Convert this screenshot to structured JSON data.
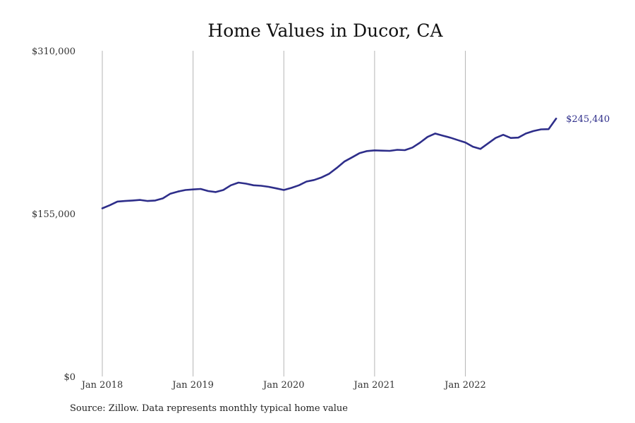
{
  "chart_data": {
    "type": "line",
    "title": "Home Values in Ducor, CA",
    "xlabel": "",
    "ylabel": "",
    "ylim": [
      0,
      310000
    ],
    "yticks": [
      0,
      155000,
      310000
    ],
    "ytick_labels": [
      "$0",
      "$155,000",
      "$310,000"
    ],
    "xtick_labels": [
      "Jan 2018",
      "Jan 2019",
      "Jan 2020",
      "Jan 2021",
      "Jan 2022"
    ],
    "grid": "vertical lines at January of each year",
    "legend": "none",
    "series": [
      {
        "color": "#2e2e8a",
        "x": [
          "2018-01",
          "2018-02",
          "2018-03",
          "2018-04",
          "2018-05",
          "2018-06",
          "2018-07",
          "2018-08",
          "2018-09",
          "2018-10",
          "2018-11",
          "2018-12",
          "2019-01",
          "2019-02",
          "2019-03",
          "2019-04",
          "2019-05",
          "2019-06",
          "2019-07",
          "2019-08",
          "2019-09",
          "2019-10",
          "2019-11",
          "2019-12",
          "2020-01",
          "2020-02",
          "2020-03",
          "2020-04",
          "2020-05",
          "2020-06",
          "2020-07",
          "2020-08",
          "2020-09",
          "2020-10",
          "2020-11",
          "2020-12",
          "2021-01",
          "2021-02",
          "2021-03",
          "2021-04",
          "2021-05",
          "2021-06",
          "2021-07",
          "2021-08",
          "2021-09",
          "2021-10",
          "2021-11",
          "2021-12",
          "2022-01",
          "2022-02",
          "2022-03",
          "2022-04",
          "2022-05",
          "2022-06",
          "2022-07",
          "2022-08",
          "2022-09",
          "2022-10",
          "2022-11",
          "2022-12",
          "2023-01"
        ],
        "y": [
          160000,
          163000,
          166500,
          167000,
          167500,
          168000,
          167000,
          167500,
          169500,
          174000,
          176000,
          177500,
          178000,
          178500,
          176500,
          175500,
          177500,
          182000,
          184500,
          183500,
          182000,
          181500,
          180500,
          179000,
          177500,
          179500,
          182000,
          185500,
          187000,
          189500,
          193000,
          198500,
          204500,
          208500,
          212500,
          214500,
          215200,
          214900,
          214700,
          215700,
          215400,
          217900,
          222500,
          228000,
          231200,
          229200,
          227300,
          225000,
          222700,
          218700,
          216600,
          221800,
          227000,
          230000,
          227000,
          227300,
          231200,
          233600,
          235200,
          235400,
          245440
        ]
      }
    ],
    "end_label": "$245,440"
  },
  "source": "Source: Zillow. Data represents monthly typical home value"
}
